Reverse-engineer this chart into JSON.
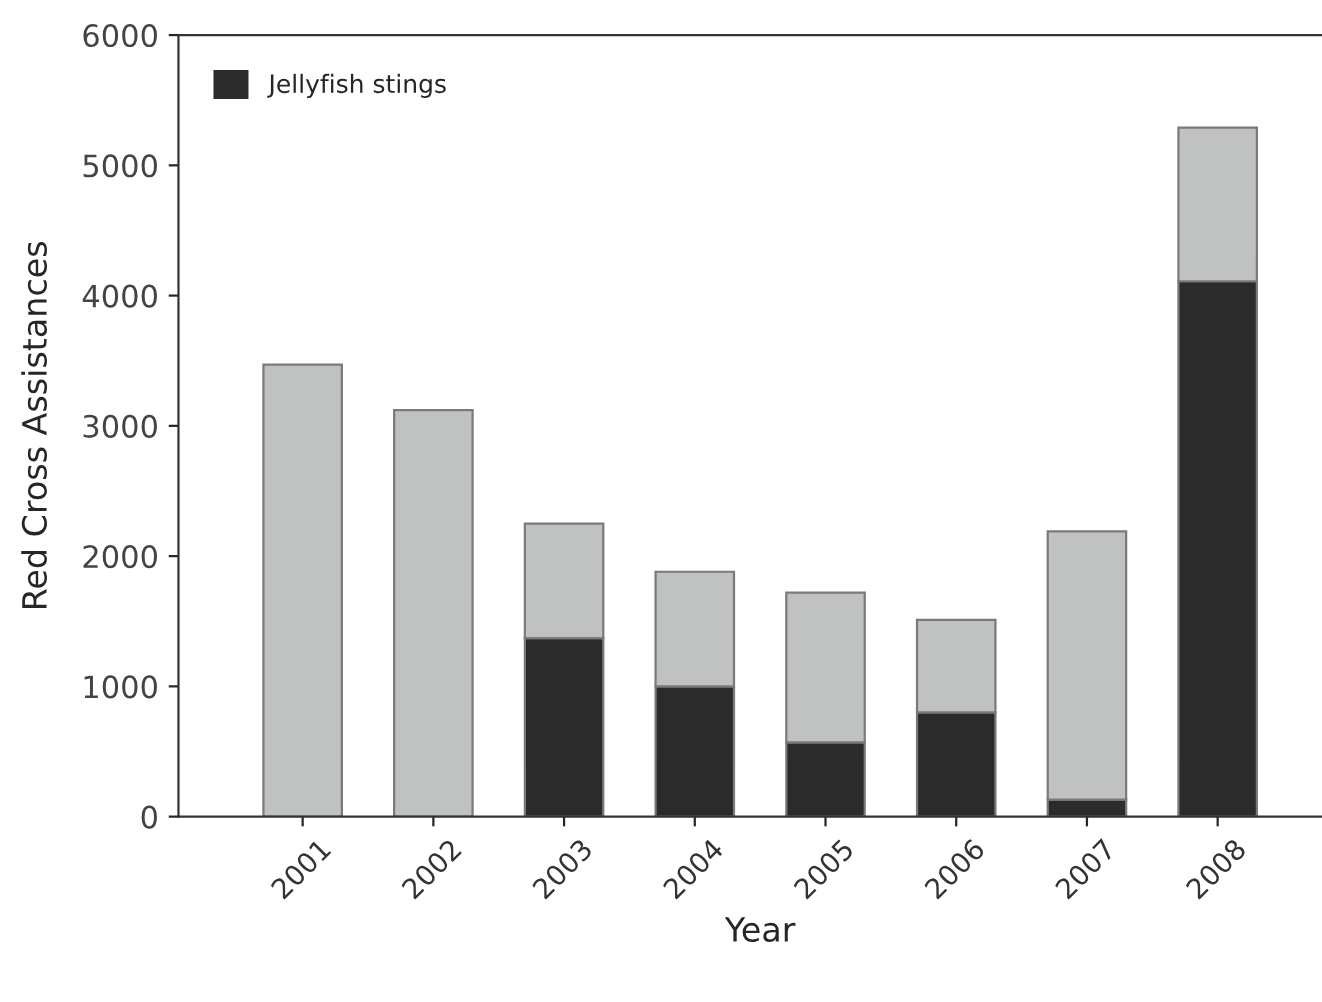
{
  "chart_data": {
    "type": "bar",
    "stacked": true,
    "xlabel": "Year",
    "ylabel": "Red Cross Assistances",
    "categories": [
      "2001",
      "2002",
      "2003",
      "2004",
      "2005",
      "2006",
      "2007",
      "2008"
    ],
    "series": [
      {
        "name": "Jellyfish stings",
        "color": "#2b2b2b",
        "values": [
          0,
          0,
          1370,
          1000,
          570,
          800,
          130,
          4110
        ]
      },
      {
        "color": "#c0c2c2",
        "values": [
          3470,
          3120,
          880,
          880,
          1150,
          710,
          2060,
          1180
        ]
      }
    ],
    "ylim": [
      0,
      6000
    ],
    "yticks": [
      0,
      1000,
      2000,
      3000,
      4000,
      5000,
      6000
    ],
    "grid": false,
    "legend": "top left"
  }
}
